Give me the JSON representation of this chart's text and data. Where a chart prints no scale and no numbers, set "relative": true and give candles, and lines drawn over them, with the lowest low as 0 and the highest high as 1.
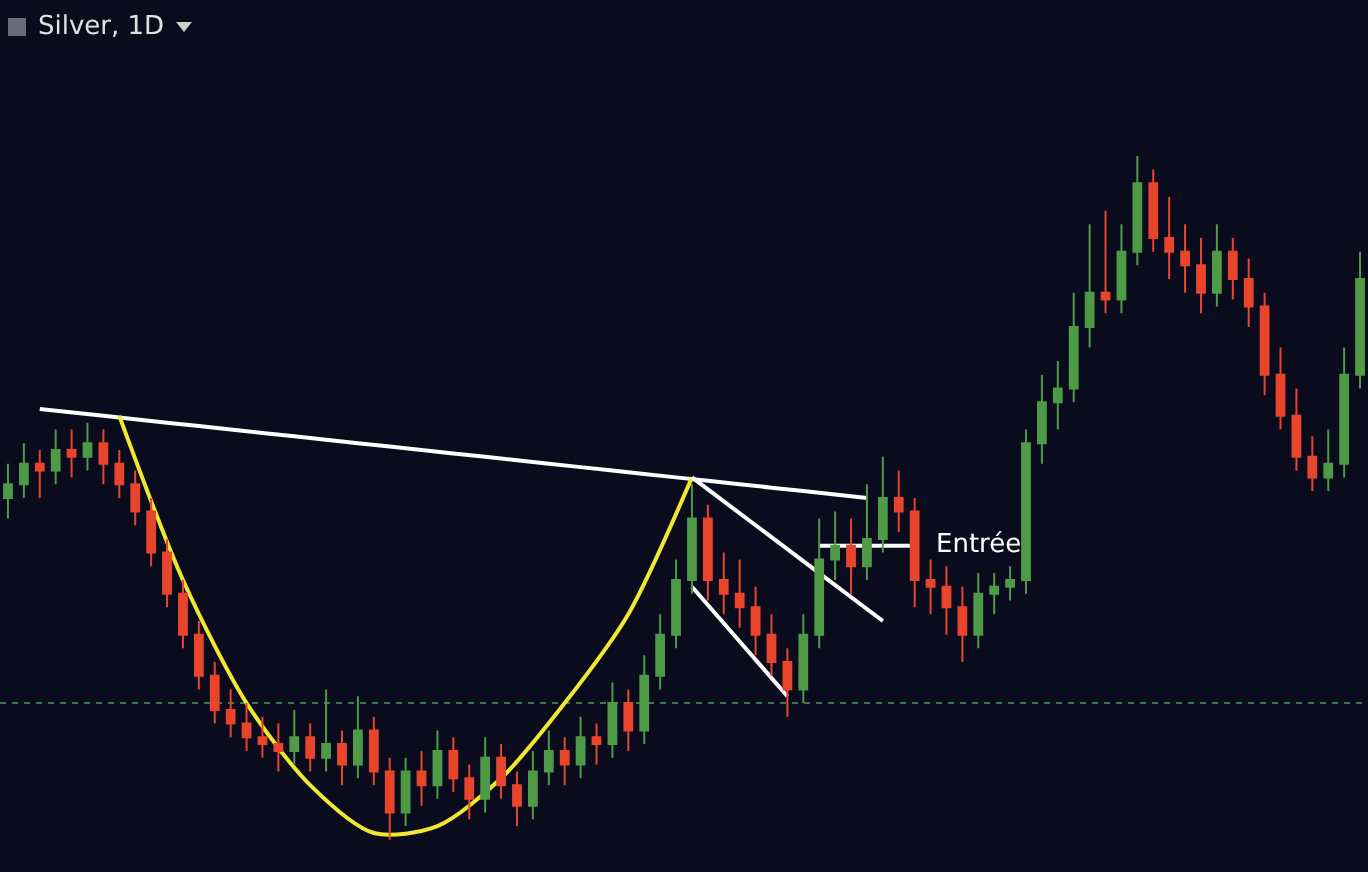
{
  "chart_data": {
    "type": "candlestick",
    "title": "Silver, 1D",
    "relative": true,
    "grid": false,
    "categories": [
      null,
      null,
      null,
      null,
      null,
      null,
      null,
      null,
      null,
      null,
      null,
      null,
      null,
      null,
      null,
      null,
      null,
      null,
      null,
      null,
      null,
      null,
      null,
      null,
      null,
      null,
      null,
      null,
      null,
      null,
      null,
      null,
      null,
      null,
      null,
      null,
      null,
      null,
      null,
      null,
      null,
      null,
      null,
      null,
      null,
      null,
      null,
      null,
      null,
      null,
      null,
      null,
      null,
      null,
      null,
      null,
      null,
      null,
      null,
      null,
      null,
      null,
      null,
      null,
      null,
      null,
      null,
      null,
      null,
      null,
      null,
      null,
      null,
      null,
      null,
      null,
      null,
      null,
      null,
      null,
      null,
      null,
      null,
      null,
      null,
      null
    ],
    "ohlc": [
      [
        0.5,
        0.55,
        0.47,
        0.52
      ],
      [
        0.52,
        0.58,
        0.5,
        0.55
      ],
      [
        0.55,
        0.57,
        0.5,
        0.54
      ],
      [
        0.54,
        0.6,
        0.52,
        0.57
      ],
      [
        0.57,
        0.6,
        0.53,
        0.56
      ],
      [
        0.56,
        0.61,
        0.54,
        0.58
      ],
      [
        0.58,
        0.6,
        0.52,
        0.55
      ],
      [
        0.55,
        0.57,
        0.5,
        0.52
      ],
      [
        0.52,
        0.54,
        0.46,
        0.48
      ],
      [
        0.48,
        0.5,
        0.4,
        0.42
      ],
      [
        0.42,
        0.44,
        0.34,
        0.36
      ],
      [
        0.36,
        0.38,
        0.28,
        0.3
      ],
      [
        0.3,
        0.32,
        0.22,
        0.24
      ],
      [
        0.24,
        0.26,
        0.17,
        0.19
      ],
      [
        0.19,
        0.22,
        0.15,
        0.17
      ],
      [
        0.17,
        0.2,
        0.13,
        0.15
      ],
      [
        0.15,
        0.18,
        0.12,
        0.14
      ],
      [
        0.14,
        0.17,
        0.1,
        0.13
      ],
      [
        0.13,
        0.19,
        0.11,
        0.15
      ],
      [
        0.15,
        0.17,
        0.1,
        0.12
      ],
      [
        0.12,
        0.22,
        0.1,
        0.14
      ],
      [
        0.14,
        0.16,
        0.08,
        0.11
      ],
      [
        0.11,
        0.21,
        0.09,
        0.16
      ],
      [
        0.16,
        0.18,
        0.08,
        0.1
      ],
      [
        0.1,
        0.12,
        0,
        0.04
      ],
      [
        0.04,
        0.12,
        0.02,
        0.1
      ],
      [
        0.1,
        0.13,
        0.05,
        0.08
      ],
      [
        0.08,
        0.16,
        0.06,
        0.13
      ],
      [
        0.13,
        0.15,
        0.07,
        0.09
      ],
      [
        0.09,
        0.11,
        0.03,
        0.06
      ],
      [
        0.06,
        0.15,
        0.04,
        0.12
      ],
      [
        0.12,
        0.14,
        0.06,
        0.08
      ],
      [
        0.08,
        0.1,
        0.02,
        0.05
      ],
      [
        0.05,
        0.13,
        0.03,
        0.1
      ],
      [
        0.1,
        0.16,
        0.08,
        0.13
      ],
      [
        0.13,
        0.15,
        0.08,
        0.11
      ],
      [
        0.11,
        0.18,
        0.09,
        0.15
      ],
      [
        0.15,
        0.17,
        0.11,
        0.14
      ],
      [
        0.14,
        0.23,
        0.12,
        0.2
      ],
      [
        0.2,
        0.22,
        0.13,
        0.16
      ],
      [
        0.16,
        0.27,
        0.14,
        0.24
      ],
      [
        0.24,
        0.33,
        0.22,
        0.3
      ],
      [
        0.3,
        0.41,
        0.28,
        0.38
      ],
      [
        0.38,
        0.52,
        0.36,
        0.47
      ],
      [
        0.47,
        0.49,
        0.35,
        0.38
      ],
      [
        0.38,
        0.42,
        0.33,
        0.36
      ],
      [
        0.36,
        0.41,
        0.31,
        0.34
      ],
      [
        0.34,
        0.37,
        0.27,
        0.3
      ],
      [
        0.3,
        0.33,
        0.24,
        0.26
      ],
      [
        0.26,
        0.28,
        0.18,
        0.22
      ],
      [
        0.22,
        0.33,
        0.2,
        0.3
      ],
      [
        0.3,
        0.47,
        0.28,
        0.41
      ],
      [
        0.41,
        0.48,
        0.38,
        0.43
      ],
      [
        0.43,
        0.47,
        0.36,
        0.4
      ],
      [
        0.4,
        0.52,
        0.38,
        0.44
      ],
      [
        0.44,
        0.56,
        0.42,
        0.5
      ],
      [
        0.5,
        0.54,
        0.45,
        0.48
      ],
      [
        0.48,
        0.5,
        0.34,
        0.38
      ],
      [
        0.38,
        0.41,
        0.33,
        0.37
      ],
      [
        0.37,
        0.4,
        0.3,
        0.34
      ],
      [
        0.34,
        0.37,
        0.26,
        0.3
      ],
      [
        0.3,
        0.39,
        0.28,
        0.36
      ],
      [
        0.36,
        0.39,
        0.33,
        0.37
      ],
      [
        0.37,
        0.4,
        0.35,
        0.38
      ],
      [
        0.38,
        0.6,
        0.36,
        0.58
      ],
      [
        0.58,
        0.68,
        0.55,
        0.64
      ],
      [
        0.64,
        0.7,
        0.6,
        0.66
      ],
      [
        0.66,
        0.8,
        0.64,
        0.75
      ],
      [
        0.75,
        0.9,
        0.72,
        0.8
      ],
      [
        0.8,
        0.92,
        0.77,
        0.79
      ],
      [
        0.79,
        0.9,
        0.77,
        0.86
      ],
      [
        0.86,
        1,
        0.84,
        0.96
      ],
      [
        0.96,
        0.98,
        0.86,
        0.88
      ],
      [
        0.88,
        0.94,
        0.82,
        0.86
      ],
      [
        0.86,
        0.9,
        0.8,
        0.84
      ],
      [
        0.84,
        0.88,
        0.77,
        0.8
      ],
      [
        0.8,
        0.9,
        0.78,
        0.86
      ],
      [
        0.86,
        0.88,
        0.79,
        0.82
      ],
      [
        0.82,
        0.85,
        0.75,
        0.78
      ],
      [
        0.78,
        0.8,
        0.65,
        0.68
      ],
      [
        0.68,
        0.72,
        0.6,
        0.62
      ],
      [
        0.62,
        0.66,
        0.54,
        0.56
      ],
      [
        0.56,
        0.59,
        0.51,
        0.53
      ],
      [
        0.53,
        0.6,
        0.51,
        0.55
      ],
      [
        0.55,
        0.72,
        0.53,
        0.68
      ],
      [
        0.68,
        0.86,
        0.66,
        0.82
      ]
    ],
    "series": [
      {
        "type": "line",
        "color": "#ffffff",
        "line_style": "solid",
        "values": [
          null,
          null,
          0.63,
          null,
          null,
          null,
          0.62,
          null,
          null,
          null,
          0.61,
          null,
          null,
          null,
          0.6,
          null,
          null,
          null,
          0.59,
          null,
          null,
          null,
          0.58,
          null,
          null,
          null,
          0.57,
          null,
          null,
          null,
          0.56,
          null,
          null,
          null,
          0.55,
          null,
          null,
          null,
          0.54,
          null,
          null,
          null,
          0.53,
          null,
          null,
          null,
          0.52,
          null,
          null,
          null,
          0.51,
          null,
          null,
          null,
          0.5,
          null,
          null,
          null,
          null,
          null,
          null,
          null,
          null,
          null,
          null,
          null,
          null,
          null,
          null,
          null,
          null,
          null,
          null,
          null,
          null,
          null,
          null,
          null,
          null,
          null,
          null,
          null,
          null,
          null,
          null,
          null
        ]
      },
      {
        "type": "line",
        "color": "#f0e830",
        "line_style": "solid",
        "values": [
          null,
          null,
          null,
          null,
          null,
          null,
          null,
          0.62,
          null,
          null,
          null,
          0.38,
          null,
          null,
          null,
          0.2,
          null,
          null,
          null,
          0.08,
          null,
          null,
          null,
          0.01,
          null,
          null,
          null,
          0.02,
          null,
          null,
          null,
          0.09,
          null,
          null,
          null,
          0.2,
          null,
          null,
          null,
          0.33,
          null,
          null,
          null,
          0.53,
          null,
          null,
          null,
          null,
          null,
          null,
          null,
          null,
          null,
          null,
          null,
          null,
          null,
          null,
          null,
          null,
          null,
          null,
          null,
          null,
          null,
          null,
          null,
          null,
          null,
          null,
          null,
          null,
          null,
          null,
          null,
          null,
          null,
          null,
          null,
          null,
          null,
          null,
          null,
          null,
          null,
          null
        ]
      },
      {
        "type": "line",
        "color": "#ffffff",
        "line_style": "solid",
        "values": [
          null,
          null,
          null,
          null,
          null,
          null,
          null,
          null,
          null,
          null,
          null,
          null,
          null,
          null,
          null,
          null,
          null,
          null,
          null,
          null,
          null,
          null,
          null,
          null,
          null,
          null,
          null,
          null,
          null,
          null,
          null,
          null,
          null,
          null,
          null,
          null,
          null,
          null,
          null,
          null,
          null,
          null,
          null,
          0.53,
          null,
          null,
          null,
          0.46,
          null,
          null,
          null,
          0.39,
          null,
          null,
          null,
          0.32,
          null,
          null,
          null,
          null,
          null,
          null,
          null,
          null,
          null,
          null,
          null,
          null,
          null,
          null,
          null,
          null,
          null,
          null,
          null,
          null,
          null,
          null,
          null,
          null,
          null,
          null,
          null,
          null,
          null,
          null
        ]
      },
      {
        "type": "line",
        "color": "#ffffff",
        "line_style": "solid",
        "values": [
          null,
          null,
          null,
          null,
          null,
          null,
          null,
          null,
          null,
          null,
          null,
          null,
          null,
          null,
          null,
          null,
          null,
          null,
          null,
          null,
          null,
          null,
          null,
          null,
          null,
          null,
          null,
          null,
          null,
          null,
          null,
          null,
          null,
          null,
          null,
          null,
          null,
          null,
          null,
          null,
          null,
          null,
          null,
          0.37,
          null,
          null,
          0.29,
          null,
          null,
          0.21,
          null,
          null,
          null,
          null,
          null,
          null,
          null,
          null,
          null,
          null,
          null,
          null,
          null,
          null,
          null,
          null,
          null,
          null,
          null,
          null,
          null,
          null,
          null,
          null,
          null,
          null,
          null,
          null,
          null,
          null,
          null,
          null,
          null,
          null,
          null,
          null
        ]
      },
      {
        "type": "line",
        "color": "#ffffff",
        "line_style": "solid",
        "values": [
          null,
          null,
          null,
          null,
          null,
          null,
          null,
          null,
          null,
          null,
          null,
          null,
          null,
          null,
          null,
          null,
          null,
          null,
          null,
          null,
          null,
          null,
          null,
          null,
          null,
          null,
          null,
          null,
          null,
          null,
          null,
          null,
          null,
          null,
          null,
          null,
          null,
          null,
          null,
          null,
          null,
          null,
          null,
          null,
          null,
          null,
          null,
          null,
          null,
          null,
          null,
          0.43,
          null,
          null,
          0.43,
          null,
          null,
          0.43,
          null,
          null,
          null,
          null,
          null,
          null,
          null,
          null,
          null,
          null,
          null,
          null,
          null,
          null,
          null,
          null,
          null,
          null,
          null,
          null,
          null,
          null,
          null,
          null,
          null,
          null,
          null,
          null
        ]
      }
    ],
    "ref_lines": [
      {
        "axis": "y",
        "value": 0.2,
        "color": "#3e7a4c",
        "line_style": "dotted"
      }
    ],
    "annotations": [
      "Entrée"
    ]
  }
}
